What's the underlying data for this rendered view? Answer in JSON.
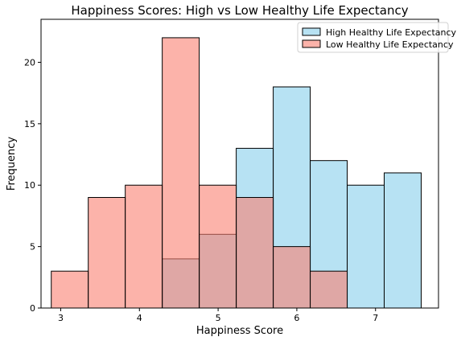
{
  "chart_data": {
    "type": "bar",
    "subtype": "overlapping-histogram",
    "title": "Happiness Scores: High vs Low Healthy Life Expectancy",
    "xlabel": "Happiness Score",
    "ylabel": "Frequency",
    "xlim": [
      2.75,
      7.8
    ],
    "ylim": [
      0,
      23.5
    ],
    "xticks": [
      3,
      4,
      5,
      6,
      7
    ],
    "yticks": [
      0,
      5,
      10,
      15,
      20
    ],
    "grid": false,
    "legend_position": "top-right",
    "bin_edges": [
      2.88,
      3.35,
      3.82,
      4.29,
      4.76,
      5.23,
      5.7,
      6.17,
      6.64,
      7.11,
      7.58
    ],
    "series": [
      {
        "name": "High Healthy Life Expectancy",
        "color": "#87CEEB",
        "values": [
          0,
          0,
          0,
          4,
          6,
          13,
          18,
          12,
          10,
          11
        ]
      },
      {
        "name": "Low Healthy Life Expectancy",
        "color": "#FA8072",
        "values": [
          3,
          9,
          10,
          22,
          10,
          9,
          5,
          3,
          0,
          0
        ]
      }
    ]
  }
}
